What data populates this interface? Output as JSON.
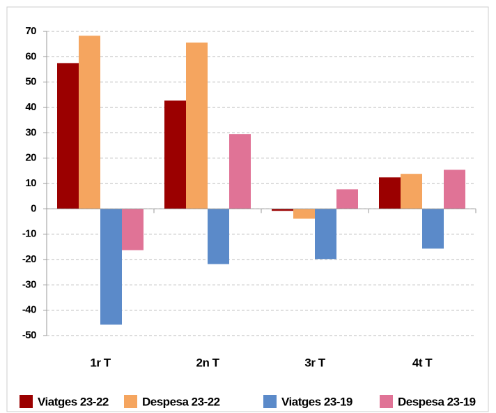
{
  "chart_data": {
    "type": "bar",
    "categories": [
      "1r T",
      "2n T",
      "3r T",
      "4t T"
    ],
    "series": [
      {
        "name": "Viatges 23-22",
        "color": "#9b0000",
        "values": [
          57.5,
          42.7,
          -0.8,
          12.4
        ]
      },
      {
        "name": "Despesa 23-22",
        "color": "#f5a55f",
        "values": [
          68.3,
          65.6,
          -3.9,
          13.8
        ]
      },
      {
        "name": "Viatges 23-19",
        "color": "#5b8ac9",
        "values": [
          -45.7,
          -21.8,
          -19.8,
          -15.7
        ]
      },
      {
        "name": "Despesa 23-19",
        "color": "#e07396",
        "values": [
          -16.3,
          29.5,
          7.7,
          15.4
        ]
      }
    ],
    "ylim": [
      -50,
      70
    ],
    "yticks": [
      -50,
      -40,
      -30,
      -20,
      -10,
      0,
      10,
      20,
      30,
      40,
      50,
      60,
      70
    ],
    "grid": true,
    "legend": "bottom"
  }
}
